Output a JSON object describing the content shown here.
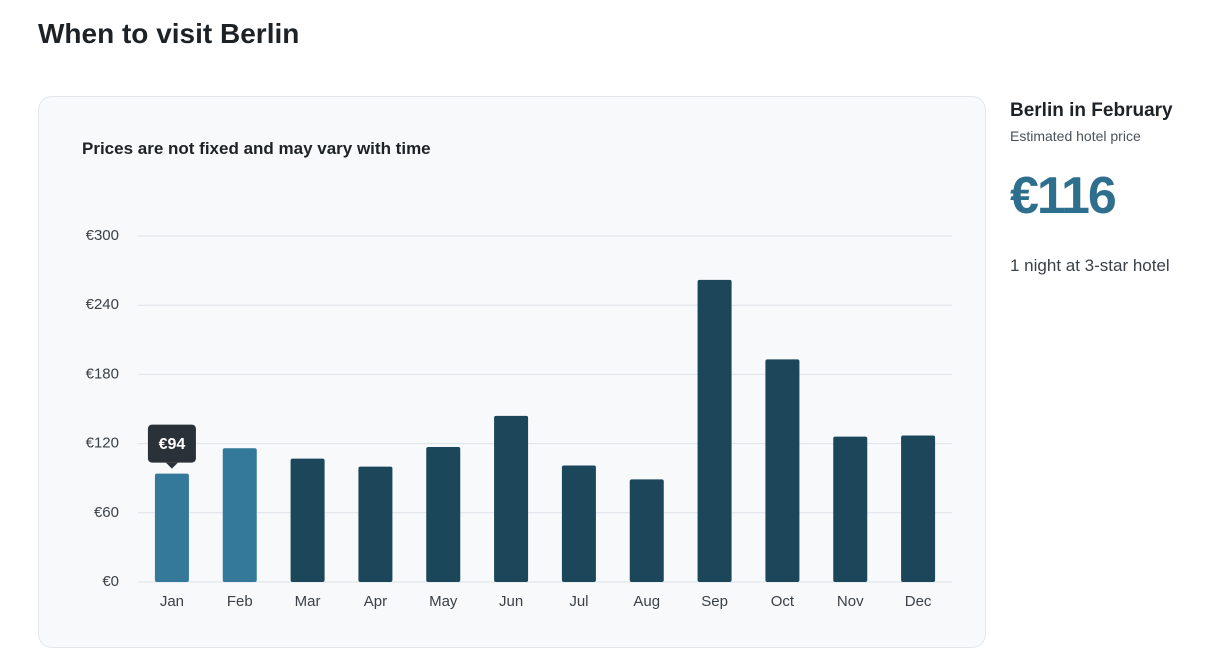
{
  "page_title": "When to visit Berlin",
  "chart_data": {
    "type": "bar",
    "subtitle": "Prices are not fixed and may vary with time",
    "categories": [
      "Jan",
      "Feb",
      "Mar",
      "Apr",
      "May",
      "Jun",
      "Jul",
      "Aug",
      "Sep",
      "Oct",
      "Nov",
      "Dec"
    ],
    "values": [
      94,
      116,
      107,
      100,
      117,
      144,
      101,
      89,
      262,
      193,
      126,
      127
    ],
    "value_labels": [
      "€94",
      null,
      null,
      null,
      null,
      null,
      null,
      null,
      null,
      null,
      null,
      null
    ],
    "colors": [
      "#34789a",
      "#34789a",
      "#1c4659",
      "#1c4659",
      "#1c4659",
      "#1c4659",
      "#1c4659",
      "#1c4659",
      "#1c4659",
      "#1c4659",
      "#1c4659",
      "#1c4659"
    ],
    "ylim": [
      0,
      300
    ],
    "yticks": [
      {
        "value": 0,
        "label": "€0"
      },
      {
        "value": 60,
        "label": "€60"
      },
      {
        "value": 120,
        "label": "€120"
      },
      {
        "value": 180,
        "label": "€180"
      },
      {
        "value": 240,
        "label": "€240"
      },
      {
        "value": 300,
        "label": "€300"
      }
    ],
    "grid": true
  },
  "side_panel": {
    "heading": "Berlin in February",
    "caption": "Estimated hotel price",
    "price": "€116",
    "note": "1 night at 3-star hotel"
  }
}
